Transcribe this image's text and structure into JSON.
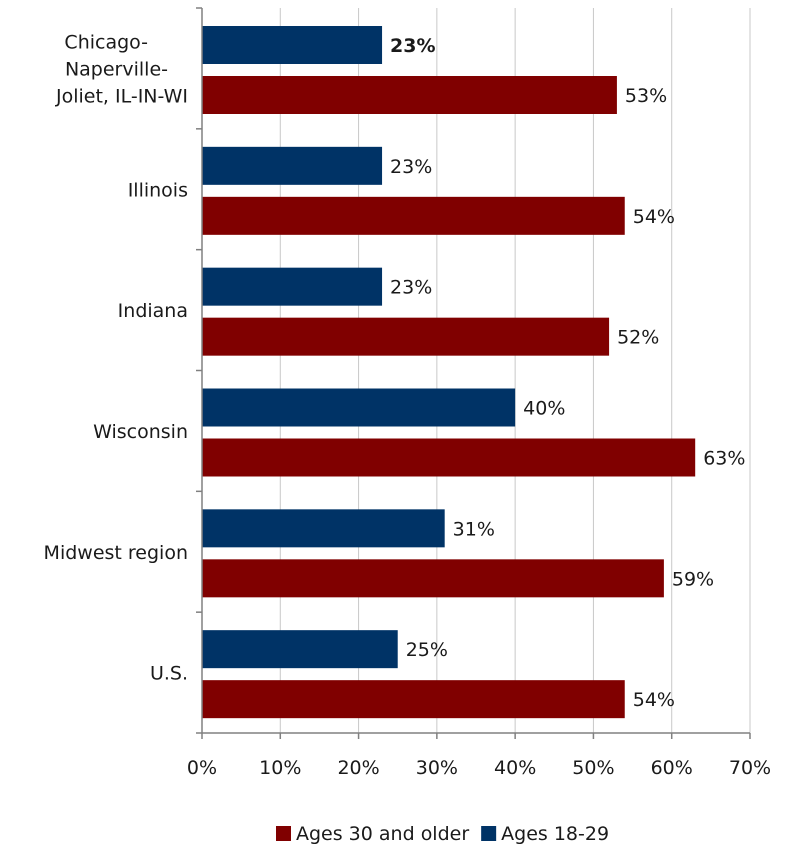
{
  "chart_data": {
    "type": "bar",
    "orientation": "horizontal",
    "categories": [
      [
        "Chicago-",
        "Naperville-",
        "Joliet, IL-IN-WI"
      ],
      [
        "Illinois"
      ],
      [
        "Indiana"
      ],
      [
        "Wisconsin"
      ],
      [
        "Midwest region"
      ],
      [
        "U.S."
      ]
    ],
    "series": [
      {
        "name": "Ages 18-29",
        "color": "#003366",
        "values": [
          23,
          23,
          23,
          40,
          31,
          25
        ],
        "labels": [
          "23%",
          "23%",
          "23%",
          "40%",
          "31%",
          "25%"
        ],
        "bold_labels": [
          true,
          false,
          false,
          false,
          false,
          false
        ]
      },
      {
        "name": "Ages 30 and older",
        "color": "#800000",
        "values": [
          53,
          54,
          52,
          63,
          59,
          54
        ],
        "labels": [
          "53%",
          "54%",
          "52%",
          "63%",
          "59%",
          "54%"
        ],
        "bold_labels": [
          false,
          false,
          false,
          false,
          false,
          false
        ]
      }
    ],
    "xlim": [
      0,
      70
    ],
    "x_ticks": [
      0,
      10,
      20,
      30,
      40,
      50,
      60,
      70
    ],
    "x_tick_labels": [
      "0%",
      "10%",
      "20%",
      "30%",
      "40%",
      "50%",
      "60%",
      "70%"
    ],
    "grid": true,
    "legend": {
      "position": "bottom",
      "entries": [
        {
          "name": "Ages 30 and older",
          "color": "#800000"
        },
        {
          "name": "Ages 18-29",
          "color": "#003366"
        }
      ]
    },
    "title": "",
    "xlabel": "",
    "ylabel": ""
  }
}
